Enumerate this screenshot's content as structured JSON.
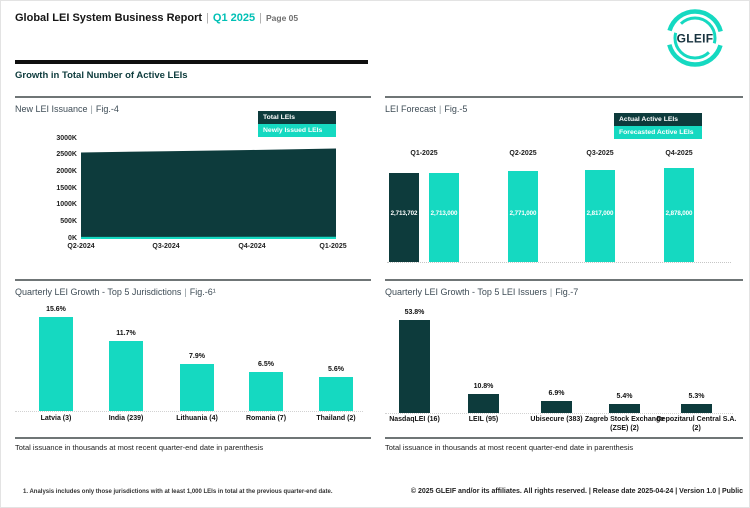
{
  "header": {
    "title": "Global LEI System Business Report",
    "sep": "|",
    "period": "Q1 2025",
    "page_label": "Page 05",
    "logo_text": "GLEIF"
  },
  "section_heading": "Growth in Total Number of Active LEIs",
  "colors": {
    "teal": "#15D9C1",
    "dark_teal": "#0D3B3C",
    "header_accent": "#00C0B5"
  },
  "panels": {
    "fig4": {
      "title": "New LEI Issuance",
      "fig": "Fig.-4",
      "legend": [
        {
          "label": "Total LEIs"
        },
        {
          "label": "Newly Issued LEIs"
        }
      ]
    },
    "fig5": {
      "title": "LEI Forecast",
      "fig": "Fig.-5",
      "legend": [
        {
          "label": "Actual Active LEIs"
        },
        {
          "label": "Forecasted Active LEIs"
        }
      ]
    },
    "fig6": {
      "title": "Quarterly LEI Growth - Top 5 Jurisdictions",
      "fig": "Fig.-6¹"
    },
    "fig7": {
      "title": "Quarterly LEI Growth - Top 5 LEI Issuers",
      "fig": "Fig.-7"
    }
  },
  "chart_data": [
    {
      "id": "fig4",
      "type": "area",
      "title": "New LEI Issuance",
      "x": [
        "Q2-2024",
        "Q3-2024",
        "Q4-2024",
        "Q1-2025"
      ],
      "yticks": [
        "3000K",
        "2500K",
        "2000K",
        "1500K",
        "1000K",
        "500K",
        "0K"
      ],
      "ylim": [
        0,
        3000000
      ],
      "legend_position": "top-right",
      "series": [
        {
          "name": "Total LEIs",
          "color": "#0D3B3C",
          "values": [
            2596000,
            2634000,
            2669000,
            2713702
          ]
        },
        {
          "name": "Newly Issued LEIs",
          "color": "#15D9C1",
          "values": [
            63000,
            64000,
            65000,
            66000
          ]
        }
      ]
    },
    {
      "id": "fig5",
      "type": "bar",
      "title": "LEI Forecast",
      "ylim": [
        0,
        2878000
      ],
      "legend_position": "top-right",
      "groups": [
        {
          "category": "Q1-2025",
          "bars": [
            {
              "series": "Actual Active LEIs",
              "value": 2713702,
              "label": "2,713,702"
            },
            {
              "series": "Forecasted Active LEIs",
              "value": 2713000,
              "label": "2,713,000"
            }
          ]
        },
        {
          "category": "Q2-2025",
          "bars": [
            {
              "series": "Forecasted Active LEIs",
              "value": 2771000,
              "label": "2,771,000"
            }
          ]
        },
        {
          "category": "Q3-2025",
          "bars": [
            {
              "series": "Forecasted Active LEIs",
              "value": 2817000,
              "label": "2,817,000"
            }
          ]
        },
        {
          "category": "Q4-2025",
          "bars": [
            {
              "series": "Forecasted Active LEIs",
              "value": 2878000,
              "label": "2,878,000"
            }
          ]
        }
      ]
    },
    {
      "id": "fig6",
      "type": "bar",
      "title": "Quarterly LEI Growth - Top 5 Jurisdictions",
      "unit": "%",
      "ylim": [
        0,
        16
      ],
      "bars": [
        {
          "category": "Latvia (3)",
          "value": 15.6,
          "label": "15.6%"
        },
        {
          "category": "India (239)",
          "value": 11.7,
          "label": "11.7%"
        },
        {
          "category": "Lithuania (4)",
          "value": 7.9,
          "label": "7.9%"
        },
        {
          "category": "Romania (7)",
          "value": 6.5,
          "label": "6.5%"
        },
        {
          "category": "Thailand (2)",
          "value": 5.6,
          "label": "5.6%"
        }
      ]
    },
    {
      "id": "fig7",
      "type": "bar",
      "title": "Quarterly LEI Growth - Top 5 LEI Issuers",
      "unit": "%",
      "ylim": [
        0,
        55
      ],
      "bars": [
        {
          "category": "NasdaqLEI (16)",
          "value": 53.8,
          "label": "53.8%"
        },
        {
          "category": "LEIL (95)",
          "value": 10.8,
          "label": "10.8%"
        },
        {
          "category": "Ubisecure (383)",
          "value": 6.9,
          "label": "6.9%"
        },
        {
          "category": "Zagreb Stock Exchange (ZSE) (2)",
          "value": 5.4,
          "label": "5.4%"
        },
        {
          "category": "Depozitarul Central S.A. (2)",
          "value": 5.3,
          "label": "5.3%"
        }
      ]
    }
  ],
  "notes": {
    "left": "Total issuance in thousands at most recent quarter-end date in parenthesis",
    "right": "Total issuance in thousands at most recent quarter-end date in parenthesis"
  },
  "footer": {
    "footnote": "1. Analysis includes only those jurisdictions with at least 1,000 LEIs in total at the previous quarter-end date.",
    "copyright": "© 2025 GLEIF and/or its affiliates. All rights reserved. | Release date 2025-04-24 | Version 1.0 | Public"
  }
}
